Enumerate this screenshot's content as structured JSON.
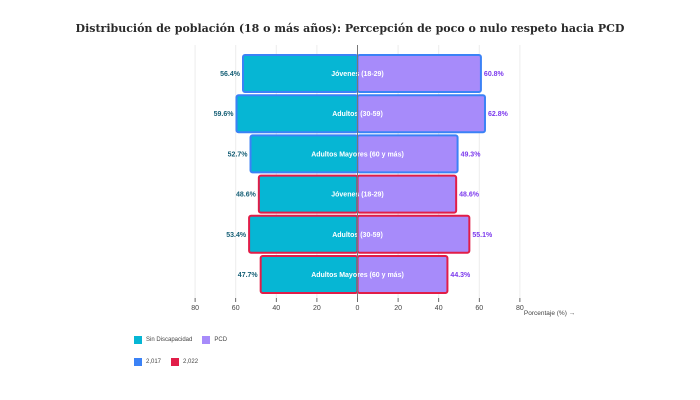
{
  "chart_data": {
    "type": "bar",
    "orientation": "horizontal",
    "layout": "population-pyramid",
    "title": "Distribución de población (18 o más años): Percepción de poco o nulo respeto hacia PCD",
    "xlabel": "Porcentaje (%) →",
    "ylabel": "",
    "xlim": [
      -80,
      80
    ],
    "x_ticks": [
      -80,
      -60,
      -40,
      -20,
      0,
      20,
      40,
      60,
      80
    ],
    "x_tick_labels": [
      "80",
      "60",
      "40",
      "20",
      "0",
      "20",
      "40",
      "60",
      "80"
    ],
    "grid": true,
    "categories": [
      {
        "label": "Jóvenes (18-29)",
        "year": "2,017"
      },
      {
        "label": "Adultos (30-59)",
        "year": "2,017"
      },
      {
        "label": "Adultos Mayores (60 y más)",
        "year": "2,017"
      },
      {
        "label": "Jóvenes (18-29)",
        "year": "2,022"
      },
      {
        "label": "Adultos (30-59)",
        "year": "2,022"
      },
      {
        "label": "Adultos Mayores (60 y más)",
        "year": "2,022"
      }
    ],
    "series": [
      {
        "name": "Sin Discapacidad",
        "side": "left",
        "color": "#06b6d4",
        "label_color": "#155e75",
        "values": [
          56.4,
          59.6,
          52.7,
          48.6,
          53.4,
          47.7
        ]
      },
      {
        "name": "PCD",
        "side": "right",
        "color": "#a78bfa",
        "label_color": "#7c3aed",
        "values": [
          60.8,
          62.8,
          49.3,
          48.6,
          55.1,
          44.3
        ]
      }
    ],
    "value_labels": {
      "Sin Discapacidad": [
        "56.4%",
        "59.6%",
        "52.7%",
        "48.6%",
        "53.4%",
        "47.7%"
      ],
      "PCD": [
        "60.8%",
        "62.8%",
        "49.3%",
        "48.6%",
        "55.1%",
        "44.3%"
      ]
    },
    "outline_colors": {
      "2,017": "#3b82f6",
      "2,022": "#e11d48"
    },
    "legend": {
      "placement": "bottom-left",
      "rows": [
        [
          {
            "label": "Sin Discapacidad",
            "color": "#06b6d4"
          },
          {
            "label": "PCD",
            "color": "#a78bfa"
          }
        ],
        [
          {
            "label": "2,017",
            "color": "#3b82f6"
          },
          {
            "label": "2,022",
            "color": "#e11d48"
          }
        ]
      ]
    }
  }
}
